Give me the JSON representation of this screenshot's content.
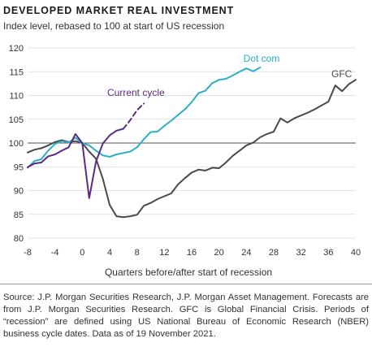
{
  "header": {
    "title": "DEVELOPED MARKET REAL INVESTMENT",
    "subtitle": "Index level, rebased to 100 at start of US recession"
  },
  "footer": {
    "source": "Source: J.P. Morgan Securities Research, J.P. Morgan Asset Management. Forecasts are from J.P. Morgan Securities Research. GFC is Global Financial Crisis. Periods of “recession” are defined using US National Bureau of Economic Research (NBER) business cycle dates. Data as of 19 November 2021."
  },
  "chart_data": {
    "type": "line",
    "title": "DEVELOPED MARKET REAL INVESTMENT",
    "subtitle": "Index level, rebased to 100 at start of US recession",
    "xlabel": "Quarters before/after start of recession",
    "ylabel": "",
    "xlim": [
      -8,
      40
    ],
    "ylim": [
      80,
      120
    ],
    "xticks": [
      -8,
      -4,
      0,
      4,
      8,
      12,
      16,
      20,
      24,
      28,
      32,
      36,
      40
    ],
    "yticks": [
      80,
      85,
      90,
      95,
      100,
      105,
      110,
      115,
      120
    ],
    "grid": "horizontal",
    "baseline": 100,
    "series": [
      {
        "name": "GFC",
        "color": "#4a4a4a",
        "style": "solid",
        "x": [
          -8,
          -7,
          -6,
          -5,
          -4,
          -3,
          -2,
          -1,
          0,
          1,
          2,
          3,
          4,
          5,
          6,
          7,
          8,
          9,
          10,
          11,
          12,
          13,
          14,
          15,
          16,
          17,
          18,
          19,
          20,
          21,
          22,
          23,
          24,
          25,
          26,
          27,
          28,
          29,
          30,
          31,
          32,
          33,
          34,
          35,
          36,
          37,
          38,
          39,
          40
        ],
        "y": [
          98,
          98.6,
          98.9,
          99.5,
          100.2,
          100.6,
          100.2,
          100.4,
          100,
          98.2,
          96.7,
          92.5,
          87,
          84.6,
          84.4,
          84.6,
          84.9,
          86.8,
          87.4,
          88.2,
          88.8,
          89.4,
          91.3,
          92.6,
          93.8,
          94.4,
          94.2,
          94.8,
          94.7,
          95.9,
          97.3,
          98.4,
          99.5,
          100.1,
          101.2,
          101.9,
          102.4,
          105.2,
          104.3,
          105.2,
          105.8,
          106.4,
          107.1,
          107.9,
          108.7,
          112.1,
          110.9,
          112.4,
          113.3
        ]
      },
      {
        "name": "Dot com",
        "color": "#2ab0c6",
        "style": "solid",
        "x": [
          -8,
          -7,
          -6,
          -5,
          -4,
          -3,
          -2,
          -1,
          0,
          1,
          2,
          3,
          4,
          5,
          6,
          7,
          8,
          9,
          10,
          11,
          12,
          13,
          14,
          15,
          16,
          17,
          18,
          19,
          20,
          21,
          22,
          23,
          24,
          25,
          26
        ],
        "y": [
          94.8,
          96.2,
          96.6,
          98.4,
          99.8,
          100.4,
          100.1,
          101.1,
          100,
          99.5,
          98.4,
          97.4,
          97.1,
          97.6,
          97.9,
          98.2,
          99.1,
          100.8,
          102.3,
          102.4,
          103.6,
          104.7,
          105.9,
          107.1,
          108.6,
          110.5,
          111,
          112.6,
          113.3,
          113.5,
          114.2,
          115,
          115.7,
          115.1,
          115.9
        ]
      },
      {
        "name": "Current cycle",
        "color": "#5b2a86",
        "style": "solid",
        "x": [
          -8,
          -7,
          -6,
          -5,
          -4,
          -3,
          -2,
          -1,
          0,
          1,
          2,
          3,
          4,
          5,
          6
        ],
        "y": [
          94.9,
          95.7,
          95.9,
          97.2,
          97.6,
          98.4,
          99.1,
          101.9,
          100,
          88.4,
          96.1,
          99.9,
          101.6,
          102.6,
          103
        ]
      },
      {
        "name": "Current cycle (forecast)",
        "color": "#5b2a86",
        "style": "dashed",
        "x": [
          6,
          7,
          8,
          9
        ],
        "y": [
          103,
          104.8,
          106.9,
          108.3
        ]
      }
    ],
    "annotations": [
      {
        "text": "Dot com",
        "series": "Dot com"
      },
      {
        "text": "Current cycle",
        "series": "Current cycle"
      },
      {
        "text": "GFC",
        "series": "GFC"
      }
    ]
  }
}
